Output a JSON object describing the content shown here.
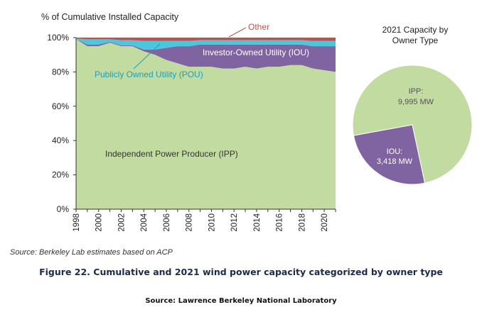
{
  "colors": {
    "ipp": "#c2dba0",
    "iou": "#8064a2",
    "pou": "#4bc6dc",
    "other": "#c0504d",
    "axis": "#333333",
    "caption": "#1a2b4c"
  },
  "chart_data": [
    {
      "type": "area",
      "stacking": "percent",
      "title": "% of Cumulative Installed Capacity",
      "xlabel": "",
      "ylabel": "% of Cumulative Installed Capacity",
      "ylim": [
        0,
        100
      ],
      "xlim": [
        1998,
        2021
      ],
      "grid": false,
      "legend": "inline labels",
      "x": [
        1998,
        1999,
        2000,
        2001,
        2002,
        2003,
        2004,
        2005,
        2006,
        2007,
        2008,
        2009,
        2010,
        2011,
        2012,
        2013,
        2014,
        2015,
        2016,
        2017,
        2018,
        2019,
        2020,
        2021
      ],
      "x_tick_labels": [
        "1998",
        "2000",
        "2002",
        "2004",
        "2006",
        "2008",
        "2010",
        "2012",
        "2014",
        "2016",
        "2018",
        "2020"
      ],
      "y_tick_labels": [
        "0%",
        "20%",
        "40%",
        "60%",
        "80%",
        "100%"
      ],
      "series": [
        {
          "name": "Independent Power Producer (IPP)",
          "key": "ipp",
          "values": [
            99,
            95,
            95,
            97,
            95,
            95,
            92,
            90,
            87,
            85,
            83,
            83,
            83,
            82,
            82,
            83,
            82,
            83,
            83,
            84,
            84,
            82,
            81,
            80
          ]
        },
        {
          "name": "Investor-Owned Utility (IOU)",
          "key": "iou",
          "values": [
            0,
            1,
            1,
            0.5,
            0.5,
            0.5,
            1,
            3,
            7,
            10,
            12,
            13,
            13,
            14,
            14,
            13,
            14,
            13,
            13,
            12,
            12,
            13,
            14,
            15
          ]
        },
        {
          "name": "Publicly Owned Utility (POU)",
          "key": "pou",
          "values": [
            0.5,
            3,
            3,
            1.5,
            3,
            3,
            5,
            5,
            4,
            3,
            3,
            2.5,
            2.5,
            2.5,
            2.5,
            2.5,
            2.5,
            2.5,
            2.5,
            2.5,
            2.5,
            3,
            3,
            3
          ]
        },
        {
          "name": "Other",
          "key": "other",
          "values": [
            0.5,
            1,
            1,
            1,
            1.5,
            1.5,
            2,
            2,
            2,
            2,
            2,
            1.5,
            1.5,
            1.5,
            1.5,
            1.5,
            1.5,
            1.5,
            1.5,
            1.5,
            1.5,
            2,
            2,
            2
          ]
        }
      ],
      "annotations": {
        "ipp": "Independent Power Producer (IPP)",
        "iou": "Investor-Owned Utility (IOU)",
        "pou": "Publicly Owned Utility (POU)",
        "other": "Other"
      }
    },
    {
      "type": "pie",
      "title": "2021 Capacity by Owner Type",
      "slices": [
        {
          "name": "IPP",
          "label": "IPP:",
          "value_label": "9,995 MW",
          "value": 9995,
          "key": "ipp"
        },
        {
          "name": "IOU",
          "label": "IOU:",
          "value_label": "3,418 MW",
          "value": 3418,
          "key": "iou"
        }
      ]
    }
  ],
  "source_note": "Source: Berkeley Lab estimates based on ACP",
  "figure_caption": "Figure 22. Cumulative and 2021 wind power capacity categorized by owner type",
  "credit": "Source: Lawrence Berkeley National Laboratory"
}
